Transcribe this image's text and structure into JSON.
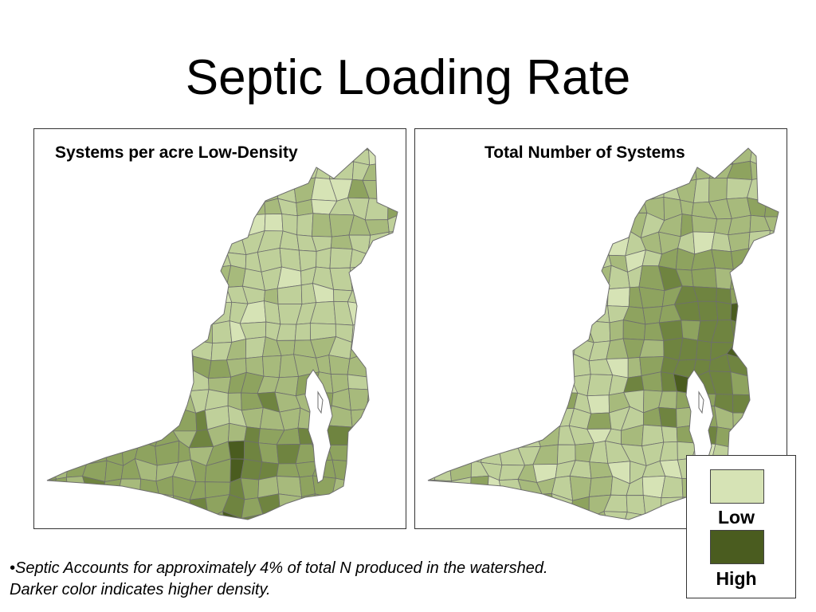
{
  "title": "Septic Loading Rate",
  "maps": [
    {
      "title": "Systems per acre Low-Density"
    },
    {
      "title": "Total Number of Systems"
    }
  ],
  "legend": {
    "low_label": "Low",
    "high_label": "High",
    "low_color": "#d6e3b5",
    "high_color": "#4a5c1f"
  },
  "footnote": {
    "line1": "•Septic Accounts for approximately 4% of total N produced in the watershed.",
    "line2": "Darker color indicates higher density."
  },
  "colors": {
    "county_border": "#6e6e6e",
    "water": "#ffffff",
    "shades": [
      "#d6e3b5",
      "#bfd09a",
      "#a7ba7c",
      "#8ea35f",
      "#6f8440",
      "#4a5c1f"
    ]
  }
}
